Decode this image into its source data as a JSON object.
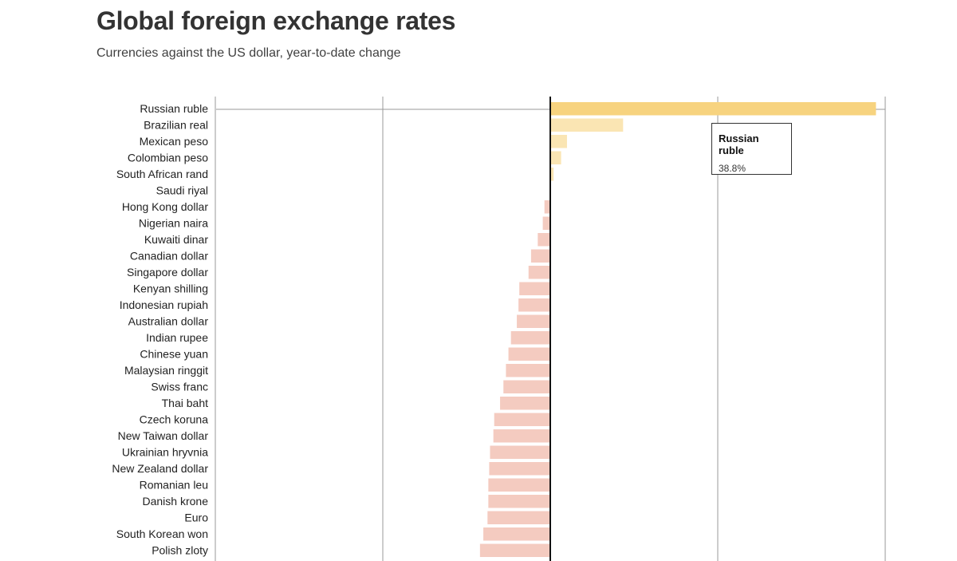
{
  "header": {
    "title": "Global foreign exchange rates",
    "subtitle": "Currencies against the US dollar, year-to-date change"
  },
  "tooltip": {
    "name": "Russian ruble",
    "value": "38.8%"
  },
  "colors": {
    "positive_highlight": "#f7d37f",
    "positive": "#fae5b3",
    "negative": "#f4cbc0",
    "zero_line": "#111111",
    "gridline": "#999999"
  },
  "chart_data": {
    "type": "bar",
    "orientation": "horizontal",
    "title": "Global foreign exchange rates",
    "subtitle": "Currencies against the US dollar, year-to-date change",
    "unit": "%",
    "xlim": [
      -40,
      40
    ],
    "gridlines": [
      -40,
      -20,
      0,
      20,
      40
    ],
    "highlighted": "Russian ruble",
    "categories": [
      "Russian ruble",
      "Brazilian real",
      "Mexican peso",
      "Colombian peso",
      "South African rand",
      "Saudi riyal",
      "Hong Kong dollar",
      "Nigerian naira",
      "Kuwaiti dinar",
      "Canadian dollar",
      "Singapore dollar",
      "Kenyan shilling",
      "Indonesian rupiah",
      "Australian dollar",
      "Indian rupee",
      "Chinese yuan",
      "Malaysian ringgit",
      "Swiss franc",
      "Thai baht",
      "Czech koruna",
      "New Taiwan dollar",
      "Ukrainian hryvnia",
      "New Zealand dollar",
      "Romanian leu",
      "Danish krone",
      "Euro",
      "South Korean won",
      "Polish zloty"
    ],
    "values": [
      38.8,
      8.6,
      1.9,
      1.2,
      0.3,
      0.0,
      -0.6,
      -0.8,
      -1.4,
      -2.2,
      -2.5,
      -3.6,
      -3.7,
      -3.9,
      -4.6,
      -4.9,
      -5.2,
      -5.5,
      -5.9,
      -6.6,
      -6.7,
      -7.1,
      -7.2,
      -7.3,
      -7.3,
      -7.4,
      -7.9,
      -8.3
    ]
  }
}
